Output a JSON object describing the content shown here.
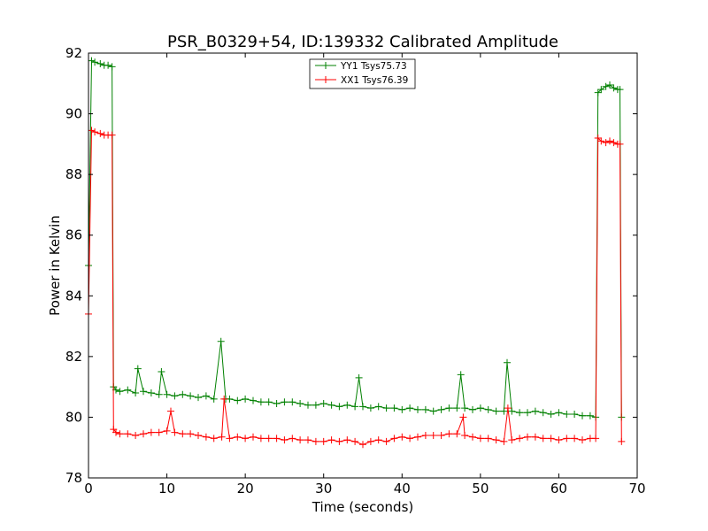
{
  "chart_data": {
    "type": "line",
    "title": "PSR_B0329+54, ID:139332 Calibrated Amplitude",
    "xlabel": "Time (seconds)",
    "ylabel": "Power in Kelvin",
    "xlim": [
      0,
      70
    ],
    "ylim": [
      78,
      92
    ],
    "xticks": [
      0,
      10,
      20,
      30,
      40,
      50,
      60,
      70
    ],
    "yticks": [
      78,
      80,
      82,
      84,
      86,
      88,
      90,
      92
    ],
    "grid": false,
    "legend_position": "top-center",
    "marker": "+",
    "series": [
      {
        "name": "YY1 Tsys75.73",
        "color": "#008000",
        "x": [
          0.0,
          0.4,
          0.8,
          1.5,
          2.0,
          2.5,
          3.0,
          3.2,
          3.5,
          4,
          5,
          6,
          6.3,
          7,
          8,
          9,
          9.3,
          10,
          11,
          12,
          13,
          14,
          15,
          16,
          16.9,
          17.5,
          18,
          19,
          20,
          21,
          22,
          23,
          24,
          25,
          26,
          27,
          28,
          29,
          30,
          31,
          32,
          33,
          34,
          34.5,
          35,
          36,
          37,
          38,
          39,
          40,
          41,
          42,
          43,
          44,
          45,
          46,
          47,
          47.5,
          48,
          49,
          50,
          51,
          52,
          53,
          53.4,
          54,
          55,
          56,
          57,
          58,
          59,
          60,
          61,
          62,
          63,
          64,
          64.7,
          65.0,
          65.4,
          66,
          66.5,
          67,
          67.5,
          67.8,
          68.0
        ],
        "y": [
          85.0,
          91.75,
          91.7,
          91.65,
          91.6,
          91.6,
          91.55,
          81.0,
          80.9,
          80.85,
          80.9,
          80.8,
          81.6,
          80.85,
          80.8,
          80.75,
          81.5,
          80.75,
          80.7,
          80.75,
          80.7,
          80.65,
          80.7,
          80.6,
          82.5,
          80.6,
          80.6,
          80.55,
          80.6,
          80.55,
          80.5,
          80.5,
          80.45,
          80.5,
          80.5,
          80.45,
          80.4,
          80.4,
          80.45,
          80.4,
          80.35,
          80.4,
          80.35,
          81.3,
          80.35,
          80.3,
          80.35,
          80.3,
          80.3,
          80.25,
          80.3,
          80.25,
          80.25,
          80.2,
          80.25,
          80.3,
          80.3,
          81.4,
          80.3,
          80.25,
          80.3,
          80.25,
          80.2,
          80.2,
          81.8,
          80.2,
          80.15,
          80.15,
          80.2,
          80.15,
          80.1,
          80.15,
          80.1,
          80.1,
          80.05,
          80.05,
          80.0,
          90.7,
          90.8,
          90.9,
          90.95,
          90.85,
          90.8,
          90.8,
          80.0
        ]
      },
      {
        "name": "XX1 Tsys76.39",
        "color": "#ff0000",
        "x": [
          0.0,
          0.4,
          0.8,
          1.5,
          2.0,
          2.5,
          3.0,
          3.2,
          3.5,
          4,
          5,
          6,
          7,
          8,
          9,
          10,
          10.5,
          11,
          12,
          13,
          14,
          15,
          16,
          17,
          17.3,
          18,
          19,
          20,
          21,
          22,
          23,
          24,
          25,
          26,
          27,
          28,
          29,
          30,
          31,
          32,
          33,
          34,
          35,
          36,
          37,
          38,
          39,
          40,
          41,
          42,
          43,
          44,
          45,
          46,
          47,
          47.8,
          48,
          49,
          50,
          51,
          52,
          53,
          53.5,
          54,
          55,
          56,
          57,
          58,
          59,
          60,
          61,
          62,
          63,
          64,
          64.7,
          65.0,
          65.4,
          66,
          66.5,
          67,
          67.5,
          67.8,
          68.0
        ],
        "y": [
          83.4,
          89.45,
          89.4,
          89.35,
          89.3,
          89.3,
          89.3,
          79.6,
          79.5,
          79.45,
          79.45,
          79.4,
          79.45,
          79.5,
          79.5,
          79.55,
          80.2,
          79.5,
          79.45,
          79.45,
          79.4,
          79.35,
          79.3,
          79.35,
          80.6,
          79.3,
          79.35,
          79.3,
          79.35,
          79.3,
          79.3,
          79.3,
          79.25,
          79.3,
          79.25,
          79.25,
          79.2,
          79.2,
          79.25,
          79.2,
          79.25,
          79.2,
          79.1,
          79.2,
          79.25,
          79.2,
          79.3,
          79.35,
          79.3,
          79.35,
          79.4,
          79.4,
          79.4,
          79.45,
          79.45,
          80.0,
          79.4,
          79.35,
          79.3,
          79.3,
          79.25,
          79.2,
          80.3,
          79.25,
          79.3,
          79.35,
          79.35,
          79.3,
          79.3,
          79.25,
          79.3,
          79.3,
          79.25,
          79.3,
          79.3,
          89.2,
          89.1,
          89.05,
          89.1,
          89.05,
          89.0,
          89.0,
          79.2
        ]
      }
    ]
  }
}
